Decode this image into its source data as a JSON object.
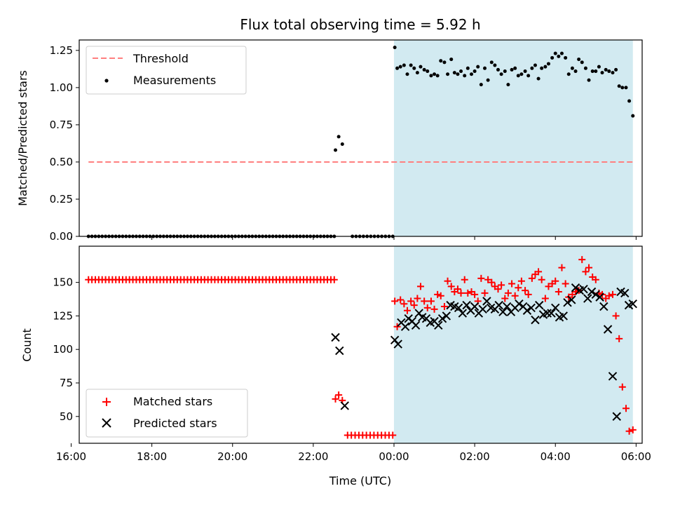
{
  "chart_data": [
    {
      "type": "scatter",
      "title": "Flux total observing time = 5.92 h",
      "ylabel": "Matched/Predicted stars",
      "xlabel": "",
      "xlim": [
        16.2,
        30.15
      ],
      "ylim": [
        0,
        1.32
      ],
      "yticks": [
        0,
        0.25,
        0.5,
        0.75,
        1.0,
        1.25
      ],
      "ytick_labels": [
        "0.00",
        "0.25",
        "0.50",
        "0.75",
        "1.00",
        "1.25"
      ],
      "shaded_region": {
        "x": [
          24.0,
          29.92
        ],
        "color": "#add8e6"
      },
      "legend_position": "upper left",
      "series": [
        {
          "name": "Threshold",
          "kind": "line",
          "style": "dashed",
          "color": "#ff7f7f",
          "x": [
            16.43,
            29.92
          ],
          "y": [
            0.5,
            0.5
          ]
        },
        {
          "name": "Measurements",
          "kind": "scatter",
          "marker": "dot",
          "color": "#000000",
          "segments": [
            {
              "x_start": 16.43,
              "x_end": 22.52,
              "count": 73,
              "y": 0.0
            },
            {
              "x_start": 22.97,
              "x_end": 23.97,
              "count": 12,
              "y": 0.0
            }
          ],
          "x": [
            22.55,
            22.63,
            22.72,
            24.02,
            24.08,
            24.16,
            24.25,
            24.33,
            24.42,
            24.5,
            24.58,
            24.66,
            24.75,
            24.83,
            24.92,
            25.0,
            25.08,
            25.16,
            25.25,
            25.33,
            25.42,
            25.5,
            25.58,
            25.66,
            25.75,
            25.83,
            25.92,
            26.0,
            26.08,
            26.16,
            26.25,
            26.33,
            26.42,
            26.5,
            26.58,
            26.66,
            26.75,
            26.83,
            26.92,
            27.0,
            27.08,
            27.16,
            27.25,
            27.33,
            27.42,
            27.5,
            27.58,
            27.66,
            27.75,
            27.83,
            27.92,
            28.0,
            28.08,
            28.16,
            28.25,
            28.33,
            28.42,
            28.5,
            28.58,
            28.66,
            28.75,
            28.83,
            28.92,
            29.0,
            29.08,
            29.16,
            29.25,
            29.33,
            29.42,
            29.5,
            29.58,
            29.66,
            29.75,
            29.83,
            29.92
          ],
          "y": [
            0.58,
            0.67,
            0.62,
            1.27,
            1.13,
            1.14,
            1.15,
            1.09,
            1.15,
            1.13,
            1.1,
            1.14,
            1.12,
            1.11,
            1.08,
            1.09,
            1.08,
            1.18,
            1.17,
            1.09,
            1.19,
            1.1,
            1.09,
            1.11,
            1.08,
            1.13,
            1.09,
            1.11,
            1.14,
            1.02,
            1.13,
            1.05,
            1.17,
            1.15,
            1.12,
            1.09,
            1.11,
            1.02,
            1.12,
            1.13,
            1.08,
            1.09,
            1.11,
            1.08,
            1.13,
            1.15,
            1.06,
            1.13,
            1.14,
            1.16,
            1.2,
            1.23,
            1.21,
            1.23,
            1.2,
            1.09,
            1.13,
            1.11,
            1.19,
            1.17,
            1.13,
            1.05,
            1.11,
            1.11,
            1.14,
            1.1,
            1.12,
            1.11,
            1.1,
            1.12,
            1.01,
            1.0,
            1.0,
            0.91,
            0.81
          ]
        }
      ]
    },
    {
      "type": "scatter",
      "title": "",
      "ylabel": "Count",
      "xlabel": "Time (UTC)",
      "xlim": [
        16.2,
        30.15
      ],
      "ylim": [
        30,
        177
      ],
      "xticks": [
        16,
        18,
        20,
        22,
        24,
        26,
        28,
        30
      ],
      "xtick_labels": [
        "16:00",
        "18:00",
        "20:00",
        "22:00",
        "00:00",
        "02:00",
        "04:00",
        "06:00"
      ],
      "yticks": [
        50,
        75,
        100,
        125,
        150
      ],
      "ytick_labels": [
        "50",
        "75",
        "100",
        "125",
        "150"
      ],
      "shaded_region": {
        "x": [
          24.0,
          29.92
        ],
        "color": "#add8e6"
      },
      "legend_position": "lower left",
      "series": [
        {
          "name": "Matched stars",
          "kind": "scatter",
          "marker": "plus",
          "color": "#ff0000",
          "segments": [
            {
              "x_start": 16.43,
              "x_end": 22.52,
              "count": 73,
              "y": 152
            },
            {
              "x_start": 22.85,
              "x_end": 23.97,
              "count": 13,
              "y": 36
            }
          ],
          "x": [
            22.55,
            22.63,
            22.72,
            24.02,
            24.08,
            24.16,
            24.25,
            24.33,
            24.42,
            24.5,
            24.58,
            24.66,
            24.75,
            24.83,
            24.92,
            25.0,
            25.08,
            25.16,
            25.25,
            25.33,
            25.42,
            25.5,
            25.58,
            25.66,
            25.75,
            25.83,
            25.92,
            26.0,
            26.08,
            26.16,
            26.25,
            26.33,
            26.42,
            26.5,
            26.58,
            26.66,
            26.75,
            26.83,
            26.92,
            27.0,
            27.08,
            27.16,
            27.25,
            27.33,
            27.42,
            27.5,
            27.58,
            27.66,
            27.75,
            27.83,
            27.92,
            28.0,
            28.08,
            28.16,
            28.25,
            28.33,
            28.42,
            28.5,
            28.58,
            28.66,
            28.75,
            28.83,
            28.92,
            29.0,
            29.08,
            29.16,
            29.25,
            29.33,
            29.42,
            29.5,
            29.58,
            29.66,
            29.75,
            29.83,
            29.92
          ],
          "y": [
            63,
            66,
            62,
            136,
            117,
            137,
            134,
            129,
            136,
            133,
            138,
            147,
            136,
            131,
            136,
            130,
            141,
            140,
            132,
            151,
            147,
            143,
            145,
            142,
            152,
            142,
            143,
            141,
            136,
            153,
            142,
            152,
            150,
            147,
            145,
            148,
            138,
            142,
            149,
            140,
            146,
            151,
            144,
            141,
            153,
            156,
            158,
            152,
            138,
            147,
            149,
            151,
            143,
            161,
            149,
            139,
            141,
            143,
            144,
            167,
            158,
            161,
            154,
            152,
            142,
            141,
            138,
            140,
            141,
            125,
            108,
            72,
            56,
            39,
            40
          ]
        },
        {
          "name": "Predicted stars",
          "kind": "scatter",
          "marker": "x",
          "color": "#000000",
          "segments": [
            {
              "x_start": 22.85,
              "x_end": 23.97,
              "count": 0,
              "y": 0
            }
          ],
          "x": [
            22.55,
            22.65,
            22.78,
            24.02,
            24.1,
            24.18,
            24.28,
            24.36,
            24.45,
            24.54,
            24.62,
            24.7,
            24.8,
            24.9,
            25.0,
            25.1,
            25.2,
            25.3,
            25.4,
            25.5,
            25.6,
            25.7,
            25.8,
            25.9,
            26.0,
            26.1,
            26.2,
            26.3,
            26.4,
            26.5,
            26.6,
            26.7,
            26.8,
            26.9,
            27.0,
            27.1,
            27.2,
            27.3,
            27.4,
            27.5,
            27.6,
            27.7,
            27.8,
            27.9,
            28.0,
            28.1,
            28.2,
            28.3,
            28.4,
            28.5,
            28.6,
            28.7,
            28.8,
            28.9,
            29.0,
            29.1,
            29.2,
            29.3,
            29.42,
            29.52,
            29.62,
            29.72,
            29.82,
            29.92
          ],
          "y": [
            109,
            99,
            58,
            107,
            104,
            120,
            117,
            123,
            121,
            118,
            127,
            124,
            123,
            120,
            121,
            118,
            123,
            125,
            133,
            132,
            131,
            127,
            133,
            129,
            132,
            127,
            130,
            136,
            131,
            130,
            133,
            128,
            132,
            128,
            131,
            134,
            132,
            129,
            131,
            122,
            133,
            126,
            127,
            127,
            131,
            124,
            125,
            135,
            137,
            146,
            144,
            145,
            138,
            143,
            141,
            139,
            132,
            115,
            80,
            50,
            143,
            142,
            133,
            134
          ]
        }
      ]
    }
  ]
}
